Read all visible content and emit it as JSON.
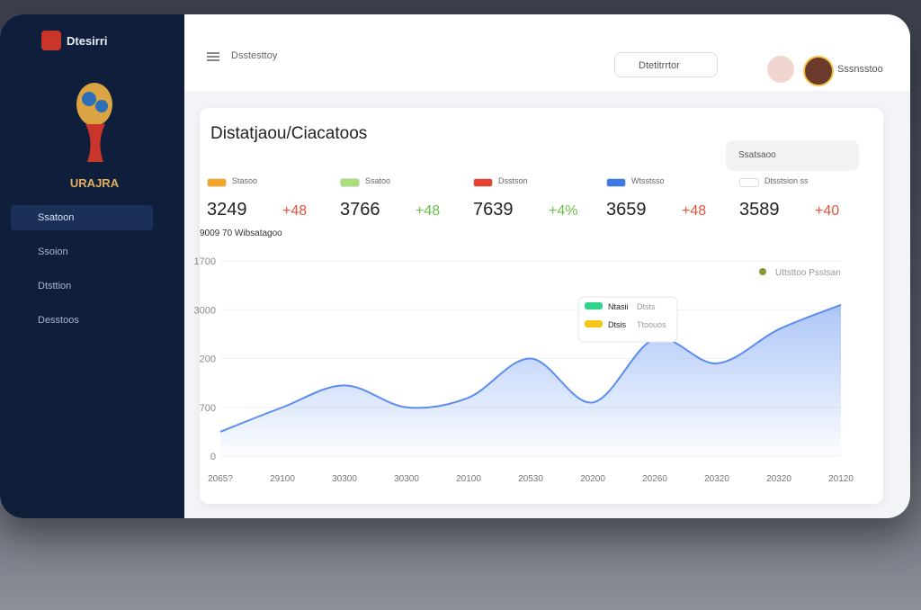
{
  "sidebar": {
    "brand": "Dtesirri",
    "logo_text": "URAJRA",
    "items": [
      "Ssatoon",
      "Ssoion",
      "Dtsttion",
      "Desstoos"
    ]
  },
  "header": {
    "breadcrumb": "Dsstesttoy",
    "search": "Dtetitrrtor",
    "user": "Sssnsstoo"
  },
  "panel": {
    "title": "Distatjaou/Ciacatoos",
    "filter": "Ssatsaoo"
  },
  "stats": [
    {
      "label": "Stasoo",
      "value": 3249,
      "delta": "+48",
      "color": "#f5a623",
      "delta_color": "#e5533d"
    },
    {
      "label": "Ssatoo",
      "value": 3766,
      "delta": "+48",
      "color": "#a8e07a",
      "delta_color": "#6cc04a"
    },
    {
      "label": "Dsstson",
      "value": 7639,
      "delta": "+4%",
      "color": "#e8412f",
      "delta_color": "#6cc04a"
    },
    {
      "label": "Wtsstsso",
      "value": 3659,
      "delta": "+48",
      "color": "#3b7be8",
      "delta_color": "#e5533d"
    },
    {
      "label": "Dtsstsion ss",
      "value": 3589,
      "delta": "+40",
      "color": "#ffffff",
      "delta_color": "#e5533d"
    }
  ],
  "chart_data": {
    "type": "area",
    "subtitle": "9009 70 Wibsatagoo",
    "categories": [
      "2065?",
      "29100",
      "30300",
      "30300",
      "20100",
      "20530",
      "20200",
      "20260",
      "20320",
      "20320",
      "20120"
    ],
    "series": [
      {
        "name": "Uttsttoo Psstsan",
        "color": "#5b8def",
        "marker_color": "#8a9a3a",
        "values": [
          0.5,
          1.0,
          1.45,
          1.0,
          1.2,
          2.0,
          1.1,
          2.4,
          1.9,
          2.6,
          3.1
        ]
      }
    ],
    "ylim": [
      0,
      4
    ],
    "yticks": [
      {
        "value": 0,
        "label": "0"
      },
      {
        "value": 1,
        "label": "700"
      },
      {
        "value": 2,
        "label": "200"
      },
      {
        "value": 3,
        "label": "3000"
      },
      {
        "value": 4,
        "label": "1700"
      }
    ],
    "grid": true,
    "tooltip": [
      {
        "label": "Ntasii",
        "text": "Dtsts",
        "color": "#2fd38a"
      },
      {
        "label": "Dtsis",
        "text": "Ttoouos",
        "color": "#f5c518"
      }
    ]
  }
}
